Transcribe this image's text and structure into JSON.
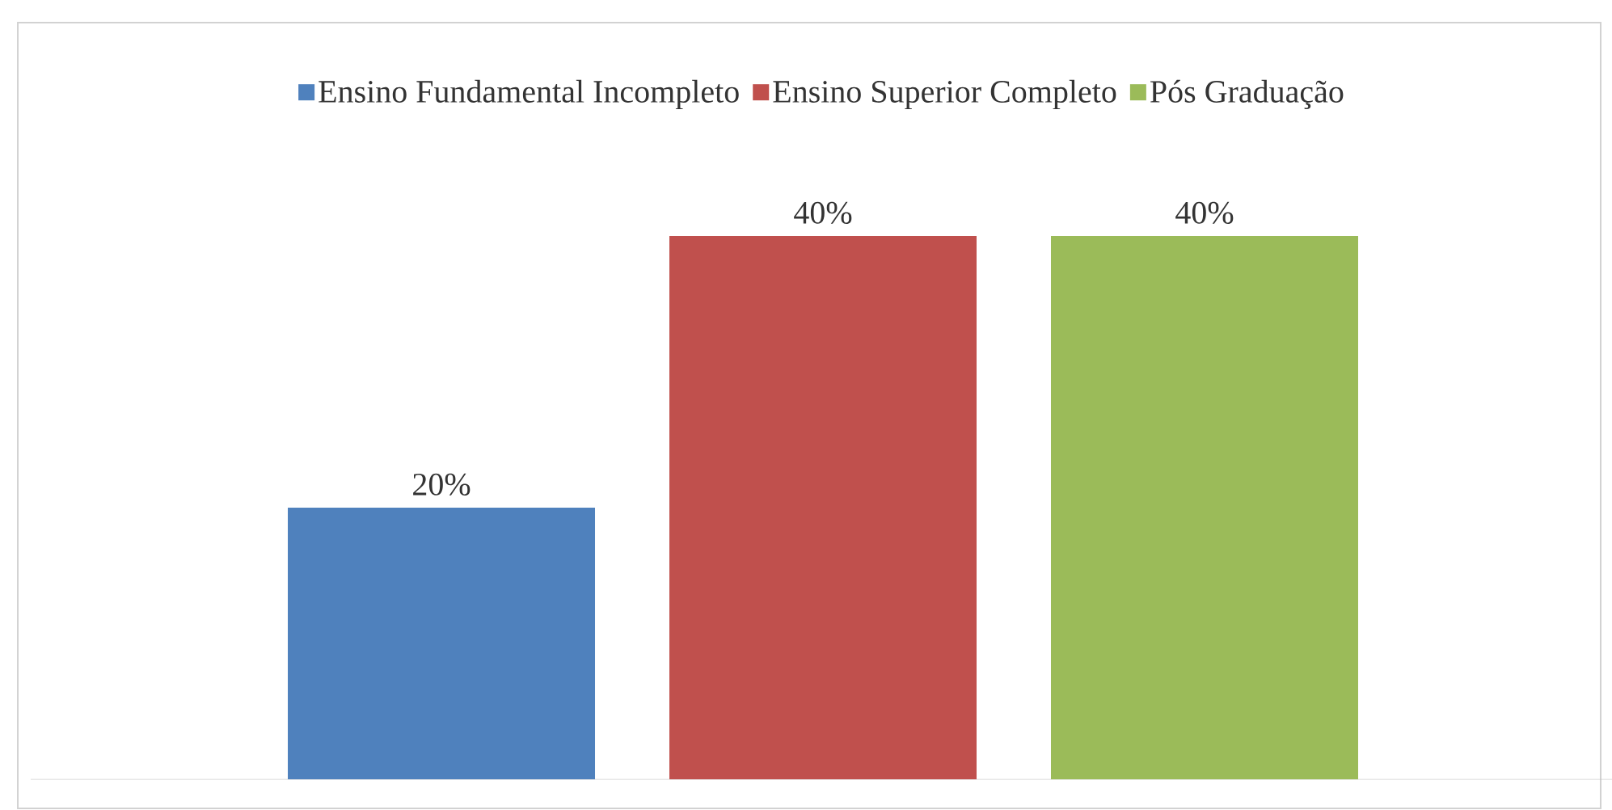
{
  "chart_data": {
    "type": "bar",
    "categories": [
      null
    ],
    "series": [
      {
        "name": "Ensino Fundamental Incompleto",
        "color": "#4f81bd",
        "values": [
          20
        ],
        "value_labels": [
          "20%"
        ]
      },
      {
        "name": "Ensino Superior Completo",
        "color": "#c0504d",
        "values": [
          40
        ],
        "value_labels": [
          "40%"
        ]
      },
      {
        "name": "Pós Graduação",
        "color": "#9bbb59",
        "values": [
          40
        ],
        "value_labels": [
          "40%"
        ]
      }
    ],
    "legend": "top"
  }
}
